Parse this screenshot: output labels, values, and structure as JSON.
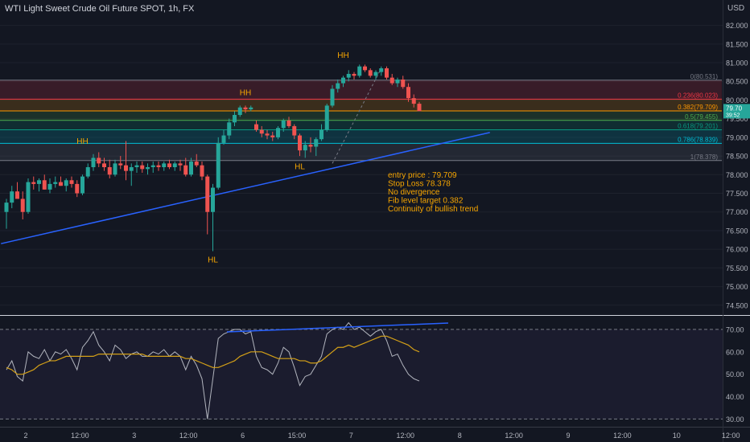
{
  "header": {
    "title": "WTI Light Sweet Crude Oil Future SPOT, 1h, FX",
    "currency": "USD"
  },
  "colors": {
    "background": "#131722",
    "up": "#26a69a",
    "down": "#ef5350",
    "trendline": "#2962ff",
    "annotation": "#f7a600",
    "rsi": "#b2b5be",
    "rsi_ma": "#d4a017"
  },
  "chart_data": [
    {
      "type": "candlestick",
      "title": "WTI Light Sweet Crude Oil Future SPOT, 1h, FX",
      "ylabel": "USD",
      "ylim": [
        74.28,
        82.25
      ],
      "y_ticks": [
        "82.000",
        "81.500",
        "81.000",
        "80.500",
        "80.000",
        "79.500",
        "79.000",
        "78.500",
        "78.000",
        "77.500",
        "77.000",
        "76.500",
        "76.000",
        "75.500",
        "75.000",
        "74.500"
      ],
      "x_ticks": [
        "2",
        "12:00",
        "3",
        "12:00",
        "6",
        "15:00",
        "7",
        "12:00",
        "8",
        "12:00",
        "9",
        "12:00",
        "10",
        "12:00"
      ],
      "current_price": [
        "79.70",
        "39:52"
      ],
      "candles": [
        {
          "o": 77.0,
          "h": 77.35,
          "l": 76.55,
          "c": 77.25
        },
        {
          "o": 77.25,
          "h": 77.7,
          "l": 77.1,
          "c": 77.55
        },
        {
          "o": 77.55,
          "h": 77.8,
          "l": 77.4,
          "c": 77.35
        },
        {
          "o": 77.35,
          "h": 77.55,
          "l": 76.8,
          "c": 77.0
        },
        {
          "o": 77.0,
          "h": 77.9,
          "l": 76.95,
          "c": 77.8
        },
        {
          "o": 77.8,
          "h": 77.95,
          "l": 77.6,
          "c": 77.75
        },
        {
          "o": 77.75,
          "h": 77.9,
          "l": 77.55,
          "c": 77.85
        },
        {
          "o": 77.85,
          "h": 78.0,
          "l": 77.6,
          "c": 77.6
        },
        {
          "o": 77.6,
          "h": 77.9,
          "l": 77.5,
          "c": 77.75
        },
        {
          "o": 77.75,
          "h": 77.95,
          "l": 77.65,
          "c": 77.8
        },
        {
          "o": 77.8,
          "h": 77.95,
          "l": 77.7,
          "c": 77.7
        },
        {
          "o": 77.7,
          "h": 77.9,
          "l": 77.55,
          "c": 77.85
        },
        {
          "o": 77.85,
          "h": 77.95,
          "l": 77.65,
          "c": 77.75
        },
        {
          "o": 77.75,
          "h": 77.85,
          "l": 77.4,
          "c": 77.5
        },
        {
          "o": 77.5,
          "h": 78.0,
          "l": 77.45,
          "c": 77.95
        },
        {
          "o": 77.95,
          "h": 78.3,
          "l": 77.9,
          "c": 78.2
        },
        {
          "o": 78.2,
          "h": 78.55,
          "l": 78.1,
          "c": 78.45
        },
        {
          "o": 78.45,
          "h": 78.6,
          "l": 78.2,
          "c": 78.3
        },
        {
          "o": 78.3,
          "h": 78.45,
          "l": 78.1,
          "c": 78.2
        },
        {
          "o": 78.2,
          "h": 78.4,
          "l": 77.9,
          "c": 78.0
        },
        {
          "o": 78.0,
          "h": 78.4,
          "l": 77.95,
          "c": 78.3
        },
        {
          "o": 78.3,
          "h": 78.5,
          "l": 78.15,
          "c": 78.25
        },
        {
          "o": 78.25,
          "h": 78.9,
          "l": 77.85,
          "c": 78.1
        },
        {
          "o": 78.1,
          "h": 78.3,
          "l": 77.7,
          "c": 78.2
        },
        {
          "o": 78.2,
          "h": 78.35,
          "l": 78.05,
          "c": 78.25
        },
        {
          "o": 78.25,
          "h": 78.35,
          "l": 78.05,
          "c": 78.15
        },
        {
          "o": 78.15,
          "h": 78.3,
          "l": 78.0,
          "c": 78.2
        },
        {
          "o": 78.2,
          "h": 78.35,
          "l": 78.05,
          "c": 78.25
        },
        {
          "o": 78.25,
          "h": 78.35,
          "l": 78.1,
          "c": 78.2
        },
        {
          "o": 78.2,
          "h": 78.35,
          "l": 78.1,
          "c": 78.3
        },
        {
          "o": 78.3,
          "h": 78.4,
          "l": 78.15,
          "c": 78.2
        },
        {
          "o": 78.2,
          "h": 78.35,
          "l": 78.1,
          "c": 78.3
        },
        {
          "o": 78.3,
          "h": 78.4,
          "l": 78.1,
          "c": 78.25
        },
        {
          "o": 78.25,
          "h": 78.45,
          "l": 77.95,
          "c": 78.0
        },
        {
          "o": 78.0,
          "h": 78.45,
          "l": 77.95,
          "c": 78.35
        },
        {
          "o": 78.35,
          "h": 78.55,
          "l": 78.2,
          "c": 78.25
        },
        {
          "o": 78.25,
          "h": 78.35,
          "l": 77.85,
          "c": 77.95
        },
        {
          "o": 77.95,
          "h": 78.0,
          "l": 76.4,
          "c": 77.0
        },
        {
          "o": 77.0,
          "h": 77.75,
          "l": 75.95,
          "c": 77.65
        },
        {
          "o": 77.65,
          "h": 79.0,
          "l": 77.6,
          "c": 78.85
        },
        {
          "o": 78.85,
          "h": 79.2,
          "l": 78.8,
          "c": 79.05
        },
        {
          "o": 79.05,
          "h": 79.5,
          "l": 78.95,
          "c": 79.4
        },
        {
          "o": 79.4,
          "h": 79.7,
          "l": 79.3,
          "c": 79.6
        },
        {
          "o": 79.6,
          "h": 79.85,
          "l": 79.55,
          "c": 79.8
        },
        {
          "o": 79.8,
          "h": 79.85,
          "l": 79.65,
          "c": 79.75
        },
        {
          "o": 79.75,
          "h": 79.85,
          "l": 79.7,
          "c": 79.8
        },
        {
          "o": 79.35,
          "h": 79.45,
          "l": 79.15,
          "c": 79.2
        },
        {
          "o": 79.2,
          "h": 79.3,
          "l": 79.0,
          "c": 79.1
        },
        {
          "o": 79.1,
          "h": 79.2,
          "l": 78.95,
          "c": 79.05
        },
        {
          "o": 79.05,
          "h": 79.15,
          "l": 78.9,
          "c": 79.0
        },
        {
          "o": 79.0,
          "h": 79.3,
          "l": 78.95,
          "c": 79.25
        },
        {
          "o": 79.25,
          "h": 79.5,
          "l": 79.15,
          "c": 79.45
        },
        {
          "o": 79.45,
          "h": 79.55,
          "l": 79.25,
          "c": 79.3
        },
        {
          "o": 79.3,
          "h": 79.35,
          "l": 78.95,
          "c": 79.05
        },
        {
          "o": 79.05,
          "h": 79.1,
          "l": 78.5,
          "c": 78.65
        },
        {
          "o": 78.65,
          "h": 78.9,
          "l": 78.45,
          "c": 78.8
        },
        {
          "o": 78.8,
          "h": 79.0,
          "l": 78.6,
          "c": 78.75
        },
        {
          "o": 78.75,
          "h": 79.0,
          "l": 78.5,
          "c": 78.95
        },
        {
          "o": 78.95,
          "h": 79.35,
          "l": 78.9,
          "c": 79.2
        },
        {
          "o": 79.2,
          "h": 79.9,
          "l": 79.15,
          "c": 79.85
        },
        {
          "o": 79.85,
          "h": 80.4,
          "l": 79.8,
          "c": 80.3
        },
        {
          "o": 80.3,
          "h": 80.55,
          "l": 80.2,
          "c": 80.45
        },
        {
          "o": 80.45,
          "h": 80.65,
          "l": 80.35,
          "c": 80.6
        },
        {
          "o": 80.6,
          "h": 80.8,
          "l": 80.5,
          "c": 80.7
        },
        {
          "o": 80.7,
          "h": 80.75,
          "l": 80.55,
          "c": 80.65
        },
        {
          "o": 80.65,
          "h": 80.95,
          "l": 80.6,
          "c": 80.9
        },
        {
          "o": 80.9,
          "h": 80.95,
          "l": 80.75,
          "c": 80.8
        },
        {
          "o": 80.8,
          "h": 80.85,
          "l": 80.6,
          "c": 80.65
        },
        {
          "o": 80.65,
          "h": 80.8,
          "l": 80.55,
          "c": 80.75
        },
        {
          "o": 80.75,
          "h": 80.9,
          "l": 80.65,
          "c": 80.85
        },
        {
          "o": 80.85,
          "h": 80.9,
          "l": 80.55,
          "c": 80.6
        },
        {
          "o": 80.6,
          "h": 80.7,
          "l": 80.4,
          "c": 80.45
        },
        {
          "o": 80.45,
          "h": 80.6,
          "l": 80.35,
          "c": 80.55
        },
        {
          "o": 80.55,
          "h": 80.65,
          "l": 80.3,
          "c": 80.35
        },
        {
          "o": 80.35,
          "h": 80.45,
          "l": 79.95,
          "c": 80.05
        },
        {
          "o": 80.05,
          "h": 80.15,
          "l": 79.8,
          "c": 79.9
        },
        {
          "o": 79.9,
          "h": 79.95,
          "l": 79.7,
          "c": 79.7
        }
      ],
      "fib_levels": [
        {
          "label": "0(80.531)",
          "value": 80.531,
          "color": "#787b86"
        },
        {
          "label": "0.236(80.023)",
          "value": 80.023,
          "color": "#f23645"
        },
        {
          "label": "0.382(79.709)",
          "value": 79.709,
          "color": "#ff9800"
        },
        {
          "label": "0.5(79.455)",
          "value": 79.455,
          "color": "#4caf50"
        },
        {
          "label": "0.618(79.201)",
          "value": 79.201,
          "color": "#089981"
        },
        {
          "label": "0.786(78.839)",
          "value": 78.839,
          "color": "#00bcd4"
        },
        {
          "label": "1(78.378)",
          "value": 78.378,
          "color": "#787b86"
        }
      ],
      "swing_labels": [
        {
          "text": "HH",
          "i": 14,
          "price": 78.7,
          "pos": "above"
        },
        {
          "text": "HL",
          "i": 38,
          "price": 75.95,
          "pos": "below"
        },
        {
          "text": "HH",
          "i": 44,
          "price": 80.0,
          "pos": "above"
        },
        {
          "text": "HL",
          "i": 54,
          "price": 78.45,
          "pos": "below"
        },
        {
          "text": "HH",
          "i": 62,
          "price": 81.0,
          "pos": "above"
        }
      ],
      "trendlines": [
        {
          "from": {
            "i": -1,
            "price": 76.15
          },
          "to": {
            "i": 89,
            "price": 79.13
          },
          "color": "#2962ff"
        }
      ],
      "dashed_lines": [
        {
          "from": {
            "i": 60,
            "price": 78.3
          },
          "to": {
            "i": 69,
            "price": 80.85
          }
        }
      ],
      "notes": [
        "entry price : 79.709",
        "Stop Loss 78.378",
        "No divergence",
        "Fib level target 0.382",
        "Continuity of bullish trend"
      ]
    },
    {
      "type": "line",
      "ylim": [
        28,
        75
      ],
      "y_ticks": [
        "70.00",
        "60.00",
        "50.00",
        "40.00",
        "30.00"
      ],
      "levels": [
        70,
        30
      ],
      "series": [
        {
          "role": "rsi",
          "values": [
            52,
            56,
            49,
            47,
            60,
            58,
            57,
            61,
            56,
            60,
            59,
            61,
            57,
            52,
            62,
            65,
            69,
            63,
            60,
            56,
            63,
            61,
            57,
            59,
            60,
            58,
            58,
            60,
            59,
            61,
            58,
            60,
            58,
            52,
            58,
            54,
            48,
            30,
            48,
            66,
            68,
            69,
            70,
            70,
            68,
            69,
            58,
            53,
            52,
            50,
            55,
            62,
            60,
            53,
            45,
            49,
            50,
            54,
            58,
            68,
            70,
            71,
            70,
            73,
            70,
            71,
            69,
            67,
            69,
            70,
            65,
            58,
            59,
            54,
            50,
            48,
            47
          ]
        },
        {
          "role": "ma",
          "values": [
            53,
            52,
            50,
            50,
            51,
            52,
            54,
            55,
            56,
            56,
            57,
            58,
            58,
            58,
            58,
            58,
            58,
            59,
            59,
            59,
            59,
            59,
            59,
            59,
            59,
            59,
            58,
            58,
            58,
            58,
            58,
            58,
            58,
            57,
            57,
            56,
            55,
            54,
            53,
            53,
            54,
            55,
            56,
            58,
            59,
            60,
            60,
            60,
            59,
            58,
            57,
            57,
            57,
            57,
            56,
            56,
            55,
            55,
            56,
            58,
            60,
            62,
            62,
            63,
            62,
            63,
            64,
            65,
            66,
            67,
            67,
            66,
            65,
            64,
            63,
            61,
            60
          ]
        }
      ]
    }
  ]
}
